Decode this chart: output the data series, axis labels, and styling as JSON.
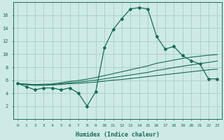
{
  "xlabel": "Humidex (Indice chaleur)",
  "background_color": "#ceeae6",
  "grid_color": "#aed0cc",
  "line_color": "#1a6b5a",
  "x_values": [
    0,
    1,
    2,
    3,
    4,
    5,
    6,
    7,
    8,
    9,
    10,
    11,
    12,
    13,
    14,
    15,
    16,
    17,
    18,
    19,
    20,
    21,
    22,
    23
  ],
  "main_series": [
    5.5,
    5.0,
    4.5,
    4.8,
    4.8,
    4.5,
    4.8,
    4.0,
    2.0,
    4.2,
    11.0,
    13.8,
    15.5,
    17.0,
    17.2,
    17.0,
    12.8,
    10.8,
    11.2,
    9.8,
    9.0,
    8.5,
    6.2,
    6.2
  ],
  "linear1": [
    5.5,
    5.3,
    5.2,
    5.2,
    5.25,
    5.35,
    5.45,
    5.5,
    5.6,
    5.7,
    5.85,
    6.0,
    6.1,
    6.25,
    6.4,
    6.55,
    6.7,
    6.85,
    7.0,
    7.15,
    7.3,
    7.45,
    7.6,
    7.7
  ],
  "linear2": [
    5.5,
    5.35,
    5.25,
    5.28,
    5.32,
    5.45,
    5.6,
    5.7,
    5.85,
    6.0,
    6.2,
    6.4,
    6.6,
    6.8,
    7.0,
    7.2,
    7.5,
    7.7,
    7.95,
    8.15,
    8.35,
    8.55,
    8.75,
    8.95
  ],
  "linear3": [
    5.5,
    5.4,
    5.32,
    5.38,
    5.42,
    5.6,
    5.8,
    5.95,
    6.15,
    6.4,
    6.7,
    7.0,
    7.3,
    7.6,
    7.9,
    8.2,
    8.6,
    8.85,
    9.1,
    9.35,
    9.55,
    9.7,
    9.85,
    9.95
  ],
  "ylim": [
    0,
    18
  ],
  "xlim": [
    -0.5,
    23.5
  ],
  "yticks": [
    2,
    4,
    6,
    8,
    10,
    12,
    14,
    16
  ],
  "xticks": [
    0,
    1,
    2,
    3,
    4,
    5,
    6,
    7,
    8,
    9,
    10,
    11,
    12,
    13,
    14,
    15,
    16,
    17,
    18,
    19,
    20,
    21,
    22,
    23
  ]
}
